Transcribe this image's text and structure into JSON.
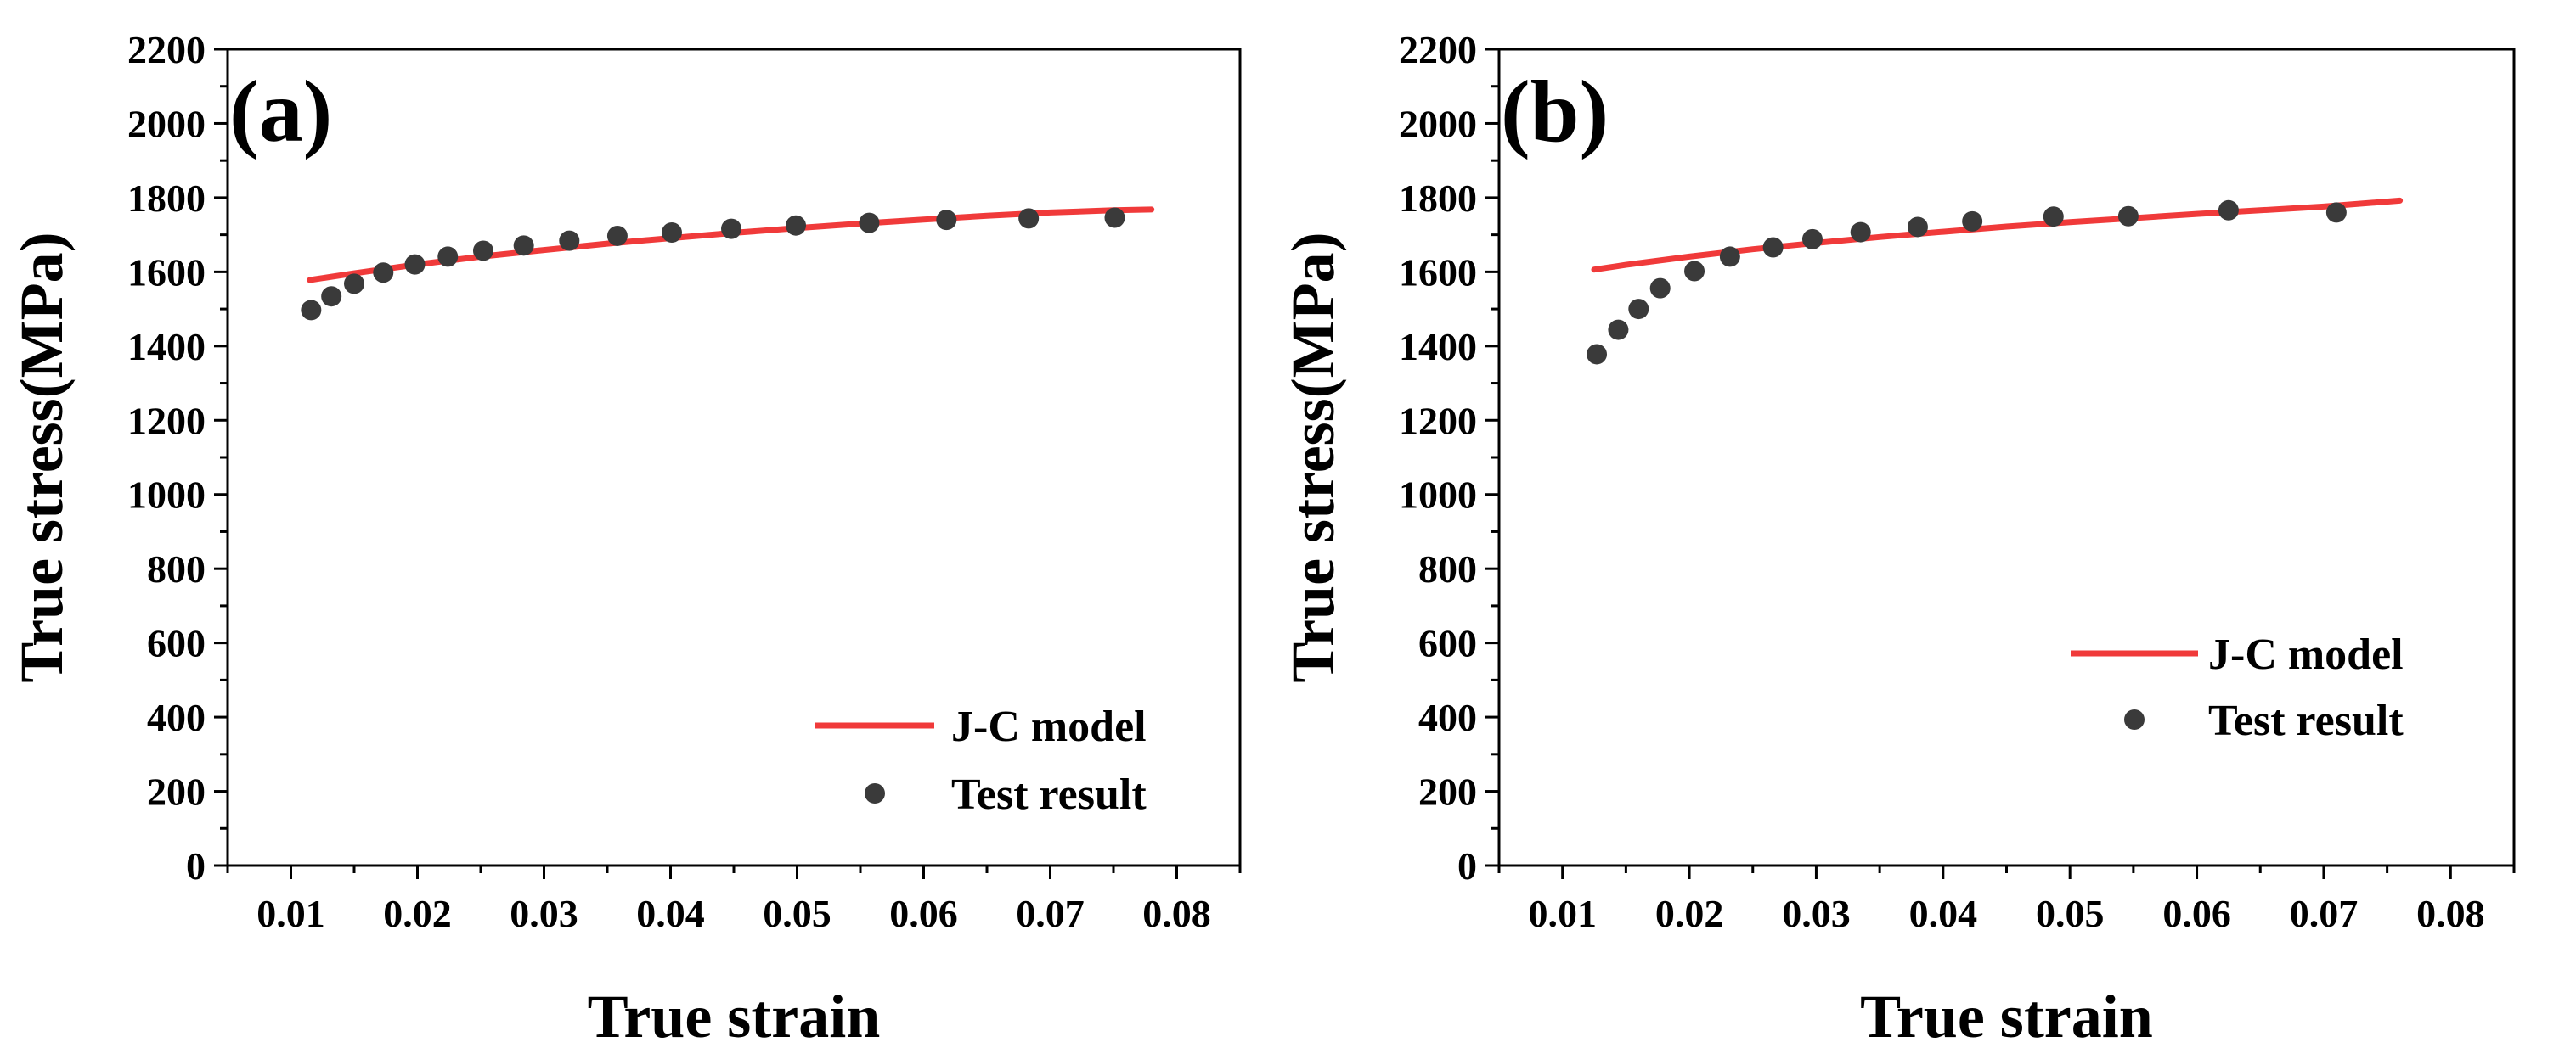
{
  "colors": {
    "model": "#f03a3a",
    "test": "#3a3a3a",
    "axis": "#000000"
  },
  "chart_data": [
    {
      "type": "line+scatter",
      "panel_label": "(a)",
      "xlabel": "True strain",
      "ylabel": "True stress(MPa)",
      "xlim": [
        0.005,
        0.085
      ],
      "ylim": [
        0,
        2200
      ],
      "xticks": [
        0.01,
        0.02,
        0.03,
        0.04,
        0.05,
        0.06,
        0.07,
        0.08
      ],
      "xtick_labels": [
        "0.01",
        "0.02",
        "0.03",
        "0.04",
        "0.05",
        "0.06",
        "0.07",
        "0.08"
      ],
      "yticks": [
        0,
        200,
        400,
        600,
        800,
        1000,
        1200,
        1400,
        1600,
        1800,
        2000,
        2200
      ],
      "ytick_labels": [
        "0",
        "200",
        "400",
        "600",
        "800",
        "1000",
        "1200",
        "1400",
        "1600",
        "1800",
        "2000",
        "2200"
      ],
      "legend_position": "bottom-right",
      "series": [
        {
          "name": "J-C model",
          "kind": "line",
          "x": [
            0.0115,
            0.015,
            0.02,
            0.025,
            0.03,
            0.035,
            0.04,
            0.045,
            0.05,
            0.055,
            0.06,
            0.065,
            0.07,
            0.075,
            0.078
          ],
          "y": [
            1578,
            1596,
            1620,
            1641,
            1659,
            1676,
            1691,
            1705,
            1718,
            1730,
            1741,
            1751,
            1760,
            1766,
            1768
          ]
        },
        {
          "name": "Test result",
          "kind": "scatter",
          "x": [
            0.0116,
            0.0132,
            0.015,
            0.0173,
            0.0198,
            0.0224,
            0.0252,
            0.0284,
            0.032,
            0.0358,
            0.0401,
            0.0448,
            0.0499,
            0.0557,
            0.0618,
            0.0683,
            0.0751
          ],
          "y": [
            1497,
            1534,
            1568,
            1598,
            1620,
            1641,
            1657,
            1671,
            1684,
            1697,
            1706,
            1716,
            1725,
            1732,
            1740,
            1744,
            1746
          ]
        }
      ]
    },
    {
      "type": "line+scatter",
      "panel_label": "(b)",
      "xlabel": "True strain",
      "ylabel": "True stress(MPa)",
      "xlim": [
        0.005,
        0.085
      ],
      "ylim": [
        0,
        2200
      ],
      "xticks": [
        0.01,
        0.02,
        0.03,
        0.04,
        0.05,
        0.06,
        0.07,
        0.08
      ],
      "xtick_labels": [
        "0.01",
        "0.02",
        "0.03",
        "0.04",
        "0.05",
        "0.06",
        "0.07",
        "0.08"
      ],
      "yticks": [
        0,
        200,
        400,
        600,
        800,
        1000,
        1200,
        1400,
        1600,
        1800,
        2000,
        2200
      ],
      "ytick_labels": [
        "0",
        "200",
        "400",
        "600",
        "800",
        "1000",
        "1200",
        "1400",
        "1600",
        "1800",
        "2000",
        "2200"
      ],
      "legend_position": "right",
      "series": [
        {
          "name": "J-C model",
          "kind": "line",
          "x": [
            0.0125,
            0.015,
            0.02,
            0.025,
            0.03,
            0.035,
            0.04,
            0.045,
            0.05,
            0.055,
            0.06,
            0.065,
            0.07,
            0.076
          ],
          "y": [
            1606,
            1619,
            1641,
            1661,
            1678,
            1694,
            1708,
            1722,
            1734,
            1745,
            1756,
            1766,
            1776,
            1792
          ]
        },
        {
          "name": "Test result",
          "kind": "scatter",
          "x": [
            0.0127,
            0.0144,
            0.016,
            0.0177,
            0.0204,
            0.0232,
            0.0266,
            0.0297,
            0.0335,
            0.038,
            0.0423,
            0.0487,
            0.0546,
            0.0625,
            0.071
          ],
          "y": [
            1378,
            1444,
            1500,
            1556,
            1602,
            1641,
            1666,
            1688,
            1707,
            1721,
            1736,
            1749,
            1750,
            1766,
            1760
          ]
        }
      ]
    }
  ]
}
